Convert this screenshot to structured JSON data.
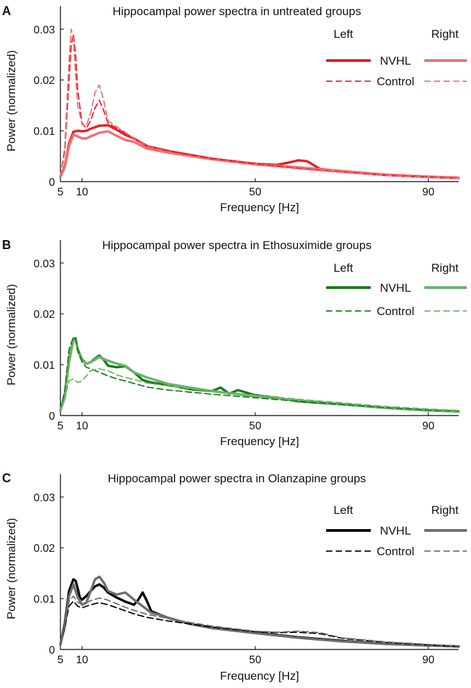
{
  "figure": {
    "x_axis_label": "Frequency [Hz]",
    "y_axis_label": "Power (normalized)"
  },
  "chart_data": [
    {
      "type": "line",
      "panel": "A",
      "title": "Hippocampal power spectra in untreated groups",
      "xlabel": "Frequency [Hz]",
      "ylabel": "Power (normalized)",
      "xlim": [
        5,
        97
      ],
      "ylim": [
        0,
        0.0345
      ],
      "xticks": [
        5,
        10,
        50,
        90
      ],
      "yticks": [
        0,
        0.01,
        0.02,
        0.03
      ],
      "ytick_labels": [
        "0",
        "0.01",
        "0.02",
        "0.03"
      ],
      "legend": {
        "left_header": "Left",
        "right_header": "Right",
        "row1": "NVHL",
        "row2": "Control",
        "position": "top-right"
      },
      "series": [
        {
          "name": "Left NVHL",
          "color": "#ee1c24",
          "style": "solid",
          "x": [
            5,
            6,
            7,
            8,
            9,
            10,
            11,
            12,
            14,
            16,
            18,
            20,
            22,
            25,
            30,
            40,
            50,
            55,
            58,
            60,
            62,
            65,
            70,
            80,
            90,
            97
          ],
          "y": [
            0.001,
            0.003,
            0.0075,
            0.0098,
            0.01,
            0.0099,
            0.01,
            0.0104,
            0.011,
            0.0111,
            0.0102,
            0.0092,
            0.0085,
            0.007,
            0.006,
            0.0045,
            0.0035,
            0.0033,
            0.0038,
            0.0042,
            0.004,
            0.0025,
            0.002,
            0.0013,
            0.0009,
            0.0007
          ]
        },
        {
          "name": "Right NVHL",
          "color": "#f07074",
          "style": "solid",
          "x": [
            5,
            6,
            7,
            8,
            9,
            10,
            11,
            12,
            14,
            16,
            18,
            20,
            22,
            25,
            30,
            40,
            50,
            60,
            70,
            80,
            90,
            97
          ],
          "y": [
            0.001,
            0.0028,
            0.007,
            0.0092,
            0.0089,
            0.0085,
            0.0085,
            0.0089,
            0.0096,
            0.0099,
            0.009,
            0.0082,
            0.0078,
            0.0065,
            0.0057,
            0.0044,
            0.0034,
            0.0028,
            0.0021,
            0.0014,
            0.001,
            0.0008
          ]
        },
        {
          "name": "Left Control",
          "color": "#ee1c24",
          "style": "dashed",
          "x": [
            5,
            6,
            7,
            7.5,
            8,
            8.5,
            9,
            10,
            11,
            12,
            13,
            14,
            15,
            16,
            18,
            20,
            22,
            25,
            30,
            40,
            50,
            60,
            70,
            80,
            90,
            97
          ],
          "y": [
            0.001,
            0.006,
            0.02,
            0.027,
            0.029,
            0.025,
            0.018,
            0.0115,
            0.0105,
            0.012,
            0.0145,
            0.016,
            0.014,
            0.0115,
            0.0105,
            0.0095,
            0.0085,
            0.007,
            0.006,
            0.0045,
            0.0035,
            0.0026,
            0.0019,
            0.0013,
            0.0009,
            0.0007
          ]
        },
        {
          "name": "Right Control",
          "color": "#f07074",
          "style": "dashed",
          "x": [
            5,
            6,
            7,
            7.5,
            8,
            8.5,
            9,
            10,
            11,
            12,
            13,
            14,
            15,
            16,
            18,
            20,
            22,
            25,
            30,
            40,
            50,
            60,
            70,
            80,
            90,
            97
          ],
          "y": [
            0.001,
            0.007,
            0.024,
            0.03,
            0.028,
            0.021,
            0.015,
            0.0112,
            0.011,
            0.0135,
            0.0175,
            0.019,
            0.016,
            0.012,
            0.0108,
            0.0097,
            0.0085,
            0.007,
            0.0058,
            0.0043,
            0.0033,
            0.0025,
            0.0018,
            0.0012,
            0.0008,
            0.0006
          ]
        }
      ]
    },
    {
      "type": "line",
      "panel": "B",
      "title": "Hippocampal power spectra in Ethosuximide groups",
      "xlabel": "Frequency [Hz]",
      "ylabel": "Power (normalized)",
      "xlim": [
        5,
        97
      ],
      "ylim": [
        0,
        0.0345
      ],
      "xticks": [
        5,
        10,
        50,
        90
      ],
      "yticks": [
        0,
        0.01,
        0.02,
        0.03
      ],
      "ytick_labels": [
        "0",
        "0.01",
        "0.02",
        "0.03"
      ],
      "legend": {
        "left_header": "Left",
        "right_header": "Right",
        "row1": "NVHL",
        "row2": "Control",
        "position": "top-right"
      },
      "series": [
        {
          "name": "Left NVHL",
          "color": "#1a7a1a",
          "style": "solid",
          "x": [
            5,
            6,
            7,
            8,
            8.5,
            9,
            10,
            11,
            12,
            13,
            14,
            15,
            16,
            18,
            20,
            22,
            24,
            26,
            30,
            35,
            40,
            42,
            44,
            46,
            50,
            55,
            60,
            70,
            80,
            90,
            97
          ],
          "y": [
            0.001,
            0.004,
            0.011,
            0.015,
            0.0152,
            0.013,
            0.011,
            0.0102,
            0.0105,
            0.0112,
            0.0118,
            0.011,
            0.0098,
            0.0095,
            0.0097,
            0.0085,
            0.007,
            0.0065,
            0.006,
            0.0052,
            0.0048,
            0.0055,
            0.0043,
            0.005,
            0.004,
            0.0035,
            0.0028,
            0.0022,
            0.0015,
            0.001,
            0.0008
          ]
        },
        {
          "name": "Right NVHL",
          "color": "#6ab46a",
          "style": "solid",
          "x": [
            5,
            6,
            7,
            8,
            8.5,
            9,
            10,
            11,
            12,
            14,
            16,
            18,
            20,
            22,
            25,
            30,
            40,
            50,
            60,
            70,
            80,
            90,
            97
          ],
          "y": [
            0.001,
            0.0035,
            0.0105,
            0.0148,
            0.015,
            0.0128,
            0.0108,
            0.0102,
            0.0105,
            0.0115,
            0.0108,
            0.0102,
            0.0098,
            0.0085,
            0.0075,
            0.0062,
            0.0048,
            0.0038,
            0.003,
            0.0022,
            0.0015,
            0.001,
            0.0008
          ]
        },
        {
          "name": "Left Control",
          "color": "#1a7a1a",
          "style": "dashed",
          "x": [
            5,
            6,
            7,
            8,
            8.5,
            9,
            10,
            11,
            12,
            14,
            16,
            18,
            20,
            22,
            25,
            30,
            40,
            50,
            60,
            70,
            80,
            90,
            97
          ],
          "y": [
            0.001,
            0.005,
            0.013,
            0.0155,
            0.015,
            0.013,
            0.0105,
            0.0095,
            0.0092,
            0.0085,
            0.0078,
            0.0072,
            0.0068,
            0.0063,
            0.0056,
            0.005,
            0.0042,
            0.0035,
            0.0028,
            0.0022,
            0.0016,
            0.0011,
            0.0009
          ]
        },
        {
          "name": "Right Control",
          "color": "#6ab46a",
          "style": "dashed",
          "x": [
            5,
            6,
            7,
            8,
            9,
            10,
            11,
            12,
            14,
            16,
            18,
            20,
            22,
            25,
            30,
            40,
            50,
            60,
            70,
            80,
            90,
            97
          ],
          "y": [
            0.001,
            0.0035,
            0.0068,
            0.0072,
            0.0065,
            0.0068,
            0.0078,
            0.0088,
            0.0092,
            0.0088,
            0.008,
            0.0075,
            0.0071,
            0.0064,
            0.0058,
            0.0048,
            0.004,
            0.0032,
            0.0025,
            0.0018,
            0.0013,
            0.001
          ]
        }
      ]
    },
    {
      "type": "line",
      "panel": "C",
      "title": "Hippocampal power spectra in Olanzapine groups",
      "xlabel": "Frequency [Hz]",
      "ylabel": "Power (normalized)",
      "xlim": [
        5,
        97
      ],
      "ylim": [
        0,
        0.0345
      ],
      "xticks": [
        5,
        10,
        50,
        90
      ],
      "yticks": [
        0,
        0.01,
        0.02,
        0.03
      ],
      "ytick_labels": [
        "0",
        "0.01",
        "0.02",
        "0.03"
      ],
      "legend": {
        "left_header": "Left",
        "right_header": "Right",
        "row1": "NVHL",
        "row2": "Control",
        "position": "top-right"
      },
      "series": [
        {
          "name": "Left NVHL",
          "color": "#000000",
          "style": "solid",
          "x": [
            5,
            6,
            7,
            8,
            8.5,
            9,
            9.5,
            10,
            11,
            12,
            13,
            14,
            15,
            16,
            18,
            20,
            22,
            23,
            24,
            25,
            26,
            30,
            35,
            40,
            50,
            60,
            70,
            80,
            90,
            97
          ],
          "y": [
            0.001,
            0.005,
            0.0115,
            0.0138,
            0.0135,
            0.012,
            0.0102,
            0.0098,
            0.0105,
            0.0115,
            0.0124,
            0.0128,
            0.0122,
            0.0112,
            0.0102,
            0.0094,
            0.0088,
            0.0098,
            0.0112,
            0.0095,
            0.0075,
            0.0062,
            0.005,
            0.0043,
            0.0033,
            0.0024,
            0.0017,
            0.0011,
            0.0008,
            0.0006
          ]
        },
        {
          "name": "Right NVHL",
          "color": "#6e6e6e",
          "style": "solid",
          "x": [
            5,
            6,
            7,
            8,
            9,
            10,
            11,
            12,
            13,
            14,
            15,
            16,
            18,
            20,
            22,
            24,
            26,
            28,
            30,
            35,
            40,
            50,
            60,
            70,
            80,
            90,
            97
          ],
          "y": [
            0.001,
            0.0045,
            0.0105,
            0.0128,
            0.0103,
            0.0088,
            0.0092,
            0.0115,
            0.0138,
            0.0143,
            0.0132,
            0.0115,
            0.0108,
            0.0112,
            0.0098,
            0.0085,
            0.0072,
            0.0068,
            0.0062,
            0.005,
            0.0042,
            0.0032,
            0.0023,
            0.0016,
            0.0011,
            0.0008,
            0.0006
          ]
        },
        {
          "name": "Left Control",
          "color": "#000000",
          "style": "dashed",
          "x": [
            5,
            6,
            7,
            8,
            9,
            10,
            11,
            12,
            14,
            16,
            18,
            20,
            22,
            25,
            30,
            35,
            40,
            50,
            55,
            60,
            65,
            70,
            80,
            90,
            97
          ],
          "y": [
            0.001,
            0.0045,
            0.0085,
            0.0095,
            0.0085,
            0.0082,
            0.0085,
            0.0088,
            0.0092,
            0.0088,
            0.0082,
            0.0076,
            0.007,
            0.0063,
            0.0056,
            0.005,
            0.0044,
            0.0035,
            0.0033,
            0.0034,
            0.0031,
            0.0022,
            0.0014,
            0.0009,
            0.0006
          ]
        },
        {
          "name": "Right Control",
          "color": "#6e6e6e",
          "style": "dashed",
          "x": [
            5,
            6,
            7,
            8,
            9,
            10,
            11,
            12,
            14,
            16,
            18,
            20,
            22,
            25,
            30,
            35,
            40,
            50,
            55,
            60,
            65,
            70,
            80,
            90,
            97
          ],
          "y": [
            0.001,
            0.005,
            0.0095,
            0.0105,
            0.0093,
            0.0089,
            0.0092,
            0.0096,
            0.0101,
            0.0097,
            0.009,
            0.0083,
            0.0077,
            0.0069,
            0.0061,
            0.0053,
            0.0046,
            0.0036,
            0.0034,
            0.0036,
            0.0033,
            0.0023,
            0.0015,
            0.001,
            0.0007
          ]
        }
      ]
    }
  ]
}
